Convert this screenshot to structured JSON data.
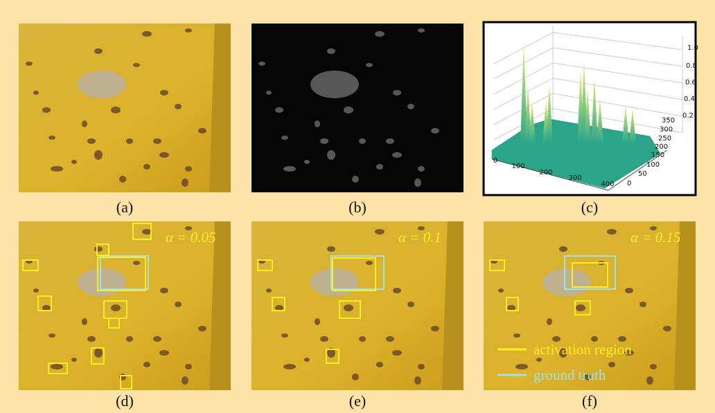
{
  "panels": [
    {
      "label": "(a)"
    },
    {
      "label": "(b)"
    },
    {
      "label": "(c)"
    },
    {
      "label": "(d)",
      "annotation": "α = 0.05"
    },
    {
      "label": "(e)",
      "annotation": "α = 0.1"
    },
    {
      "label": "(f)",
      "annotation": "α = 0.15"
    }
  ],
  "legend": {
    "activation": "activation region",
    "ground_truth": "ground truth"
  },
  "plot3d": {
    "x_ticks": [
      "0",
      "100",
      "200",
      "300",
      "400"
    ],
    "y_ticks": [
      "0",
      "50",
      "100",
      "150",
      "200",
      "250",
      "300",
      "350"
    ],
    "z_ticks": [
      "0.2",
      "0.4",
      "0.6",
      "0.8",
      "1.0"
    ]
  }
}
